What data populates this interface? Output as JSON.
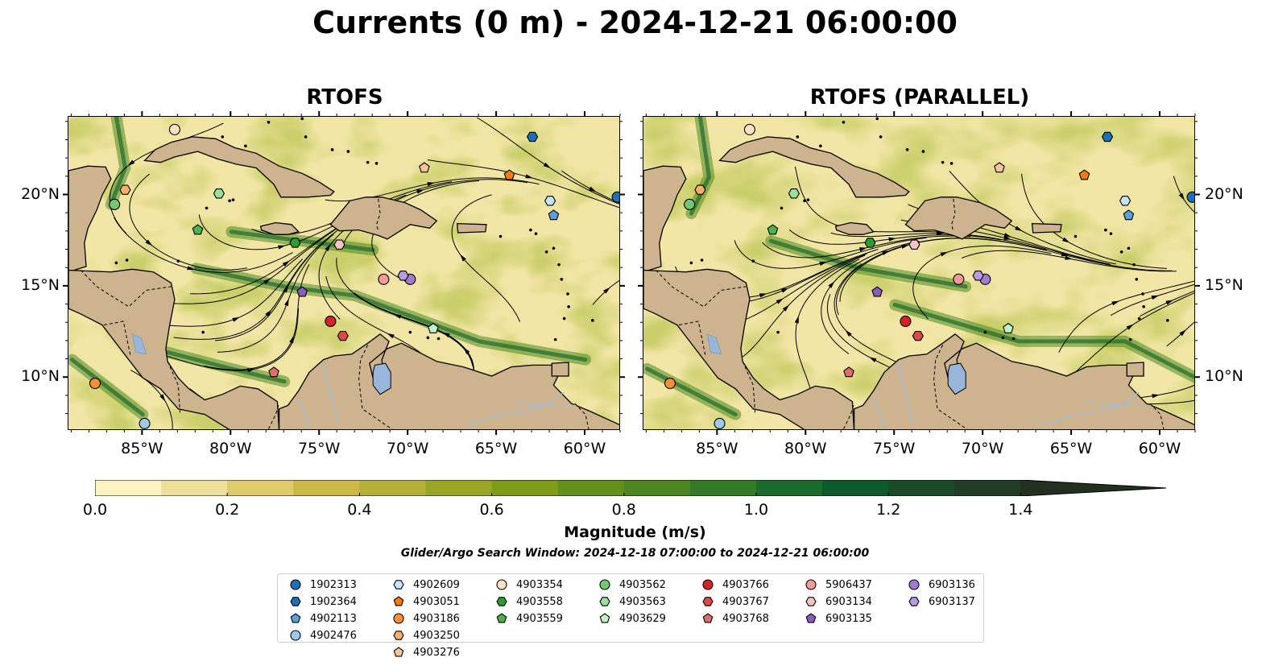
{
  "title": "Currents (0 m) - 2024-12-21 06:00:00",
  "panels": [
    {
      "title": "RTOFS"
    },
    {
      "title": "RTOFS (PARALLEL)"
    }
  ],
  "lon_ticks": [
    "85°W",
    "80°W",
    "75°W",
    "70°W",
    "65°W",
    "60°W"
  ],
  "lon_values": [
    -85,
    -80,
    -75,
    -70,
    -65,
    -60
  ],
  "lat_ticks": [
    "20°N",
    "15°N",
    "10°N"
  ],
  "lat_values": [
    20,
    15,
    10
  ],
  "extent": {
    "lon_min": -89.2,
    "lon_max": -58,
    "lat_min": 7.1,
    "lat_max": 24.3
  },
  "colorbar": {
    "title": "Magnitude (m/s)",
    "tick_labels": [
      "0.0",
      "0.2",
      "0.4",
      "0.6",
      "0.8",
      "1.0",
      "1.2",
      "1.4"
    ],
    "tick_values": [
      0,
      0.2,
      0.4,
      0.6,
      0.8,
      1.0,
      1.2,
      1.4
    ],
    "max": 1.5,
    "colors": [
      "#fbf4c2",
      "#ede09a",
      "#dfca6c",
      "#cdb84a",
      "#b5b03c",
      "#99a625",
      "#7f9c18",
      "#63901a",
      "#4d8520",
      "#357a26",
      "#1d6b2c",
      "#0f5a2c",
      "#1a4a2a",
      "#223d26",
      "#23301f"
    ],
    "extend": "max"
  },
  "search_window": "Glider/Argo Search Window: 2024-12-18 07:00:00 to 2024-12-21 06:00:00",
  "colors": {
    "land": "#cdb38e",
    "lakes": "#97b6d9",
    "rivers": "#9fbcd9",
    "frame": "#000000"
  },
  "floats": [
    {
      "id": "1902313",
      "marker": "circle",
      "color": "#1f6fb4",
      "lon": -58.2,
      "lat": 19.9
    },
    {
      "id": "1902364",
      "marker": "hexagon",
      "color": "#1f6fb4",
      "lon": -63.0,
      "lat": 23.2
    },
    {
      "id": "4902113",
      "marker": "pentagon",
      "color": "#5aa0dc",
      "lon": -61.8,
      "lat": 18.9
    },
    {
      "id": "4902476",
      "marker": "circle",
      "color": "#9ec9ec",
      "lon": -84.9,
      "lat": 7.5
    },
    {
      "id": "4902609",
      "marker": "hexagon",
      "color": "#c8e4f8",
      "lon": -62.0,
      "lat": 19.7
    },
    {
      "id": "4903051",
      "marker": "pentagon",
      "color": "#f27d0c",
      "lon": -64.3,
      "lat": 21.1
    },
    {
      "id": "4903186",
      "marker": "circle",
      "color": "#f58f3a",
      "lon": -87.7,
      "lat": 9.7
    },
    {
      "id": "4903250",
      "marker": "hexagon",
      "color": "#fbb06a",
      "lon": -86.0,
      "lat": 20.3
    },
    {
      "id": "4903276",
      "marker": "pentagon",
      "color": "#f6c69a",
      "lon": -69.1,
      "lat": 21.5
    },
    {
      "id": "4903354",
      "marker": "circle",
      "color": "#fde1c4",
      "lon": -83.2,
      "lat": 23.6
    },
    {
      "id": "4903558",
      "marker": "hexagon",
      "color": "#2e9d2e",
      "lon": -76.4,
      "lat": 17.4
    },
    {
      "id": "4903559",
      "marker": "pentagon",
      "color": "#4cb44c",
      "lon": -81.9,
      "lat": 18.1
    },
    {
      "id": "4903562",
      "marker": "circle",
      "color": "#74c874",
      "lon": -86.6,
      "lat": 19.5
    },
    {
      "id": "4903563",
      "marker": "hexagon",
      "color": "#9adf9a",
      "lon": -80.7,
      "lat": 20.1
    },
    {
      "id": "4903629",
      "marker": "pentagon",
      "color": "#c6f1c6",
      "lon": -68.6,
      "lat": 12.7
    },
    {
      "id": "4903766",
      "marker": "circle",
      "color": "#d62222",
      "lon": -74.4,
      "lat": 13.1
    },
    {
      "id": "4903767",
      "marker": "hexagon",
      "color": "#e04848",
      "lon": -73.7,
      "lat": 12.3
    },
    {
      "id": "4903768",
      "marker": "pentagon",
      "color": "#e06e6e",
      "lon": -77.6,
      "lat": 10.3
    },
    {
      "id": "5906437",
      "marker": "circle",
      "color": "#f29a9a",
      "lon": -71.4,
      "lat": 15.4
    },
    {
      "id": "6903134",
      "marker": "hexagon",
      "color": "#f8c4c4",
      "lon": -73.9,
      "lat": 17.3
    },
    {
      "id": "6903135",
      "marker": "pentagon",
      "color": "#8a5bc0",
      "lon": -76.0,
      "lat": 14.7
    },
    {
      "id": "6903136",
      "marker": "circle",
      "color": "#a07dd2",
      "lon": -69.9,
      "lat": 15.4
    },
    {
      "id": "6903137",
      "marker": "hexagon",
      "color": "#b89be0",
      "lon": -70.3,
      "lat": 15.6
    }
  ]
}
